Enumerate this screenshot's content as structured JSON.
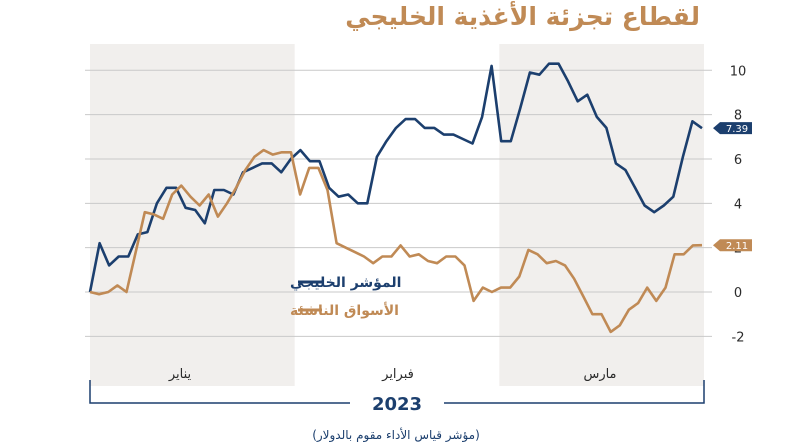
{
  "chart_data": {
    "type": "line",
    "title": "لقطاع تجزئة الأغذية الخليجي",
    "unit_label": "%",
    "footnote": "(مؤشر قياس الأداء مقوم بالدولار)",
    "year_label": "2023",
    "months": [
      "يناير",
      "فبراير",
      "مارس"
    ],
    "ylim": [
      -2.3,
      10.6
    ],
    "y_ticks": [
      10,
      8,
      6,
      4,
      2,
      0,
      -2
    ],
    "y_tick_labels": [
      "10",
      "8",
      "6",
      "4",
      "2",
      "0",
      "-2"
    ],
    "grid": true,
    "legend_position": "center-left",
    "series": [
      {
        "name": "المؤشر الخليجي",
        "color": "#1c3f6e",
        "end_label": "7.39",
        "values": [
          0,
          2.2,
          1.2,
          1.6,
          1.6,
          2.6,
          2.7,
          4.0,
          4.7,
          4.7,
          3.8,
          3.7,
          3.1,
          4.6,
          4.6,
          4.4,
          5.4,
          5.6,
          5.8,
          5.8,
          5.4,
          6.0,
          6.4,
          5.9,
          5.9,
          4.7,
          4.3,
          4.4,
          4.0,
          4.0,
          6.1,
          6.8,
          7.4,
          7.8,
          7.8,
          7.4,
          7.4,
          7.1,
          7.1,
          6.9,
          6.7,
          7.9,
          10.2,
          6.8,
          6.8,
          8.3,
          9.9,
          9.8,
          10.3,
          10.3,
          9.5,
          8.6,
          8.9,
          7.9,
          7.4,
          5.8,
          5.5,
          4.7,
          3.9,
          3.6,
          3.9,
          4.3,
          6.1,
          7.7,
          7.39
        ]
      },
      {
        "name": "الأسواق الناشئة",
        "color": "#c08a55",
        "end_label": "2.11",
        "values": [
          0,
          -0.1,
          0,
          0.3,
          0,
          1.8,
          3.6,
          3.5,
          3.3,
          4.4,
          4.8,
          4.3,
          3.9,
          4.4,
          3.4,
          4.0,
          4.7,
          5.5,
          6.1,
          6.4,
          6.2,
          6.3,
          6.3,
          4.4,
          5.6,
          5.6,
          4.6,
          2.2,
          2.0,
          1.8,
          1.6,
          1.3,
          1.6,
          1.6,
          2.1,
          1.6,
          1.7,
          1.4,
          1.3,
          1.6,
          1.6,
          1.2,
          -0.4,
          0.2,
          0,
          0.2,
          0.2,
          0.7,
          1.9,
          1.7,
          1.3,
          1.4,
          1.2,
          0.6,
          -0.2,
          -1.0,
          -1.0,
          -1.8,
          -1.5,
          -0.8,
          -0.5,
          0.2,
          -0.4,
          0.2,
          1.7,
          1.7,
          2.1,
          2.11
        ]
      }
    ]
  }
}
